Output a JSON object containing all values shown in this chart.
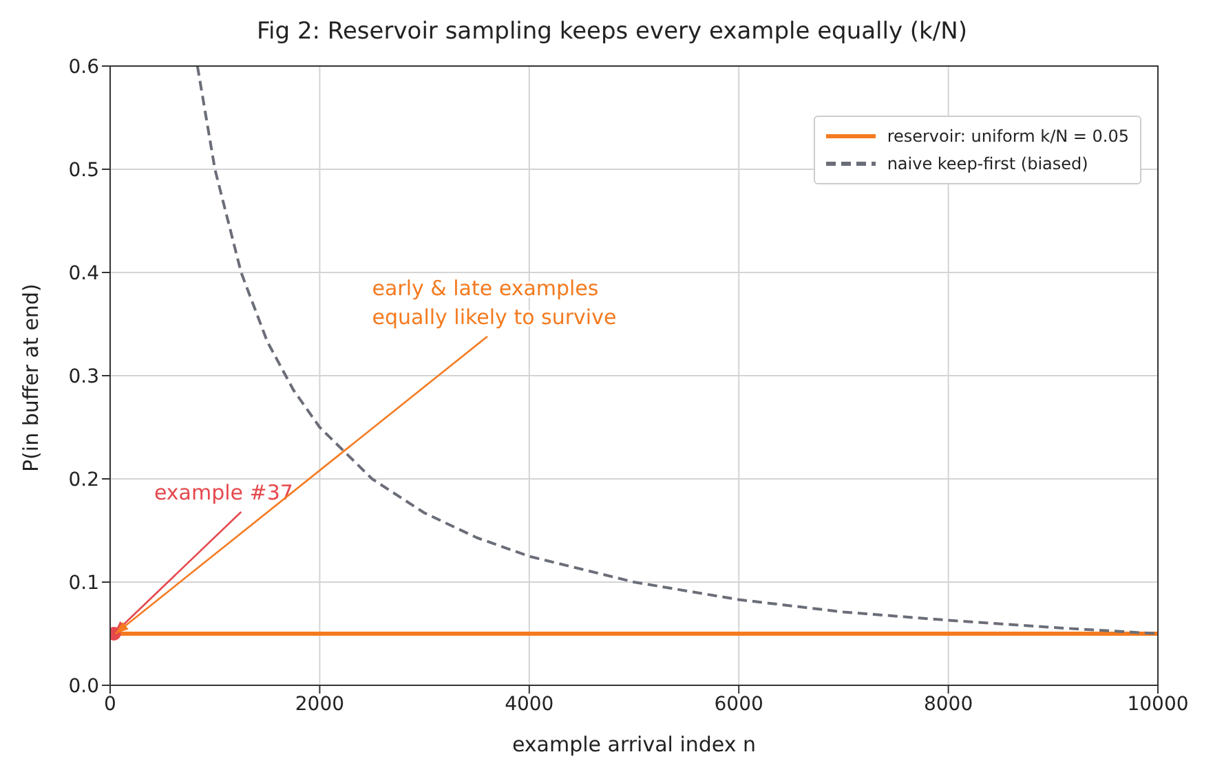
{
  "chart_data": {
    "type": "line",
    "title": "Fig 2: Reservoir sampling keeps every example equally (k/N)",
    "xlabel": "example arrival index n",
    "ylabel": "P(in buffer at end)",
    "xlim": [
      0,
      10000
    ],
    "xticks": [
      0,
      2000,
      4000,
      6000,
      8000,
      10000
    ],
    "ylim": [
      0,
      0.6
    ],
    "yticks": [
      {
        "value": 0,
        "label": "0.0"
      },
      {
        "value": 0.1,
        "label": "0.1"
      },
      {
        "value": 0.2,
        "label": "0.2"
      },
      {
        "value": 0.3,
        "label": "0.3"
      },
      {
        "value": 0.4,
        "label": "0.4"
      },
      {
        "value": 0.5,
        "label": "0.5"
      },
      {
        "value": 0.6,
        "label": "0.6"
      }
    ],
    "grid": true,
    "legend": "top right",
    "series": [
      {
        "name": "reservoir: uniform  k/N = 0.05",
        "color": "#f47a1f",
        "line_style": "solid",
        "x": [
          0,
          10000
        ],
        "values": [
          0.05,
          0.05
        ]
      },
      {
        "name": "naive keep-first (biased)",
        "color": "#6b6e78",
        "line_style": "dashed",
        "x": [
          833,
          1000,
          1250,
          1500,
          1750,
          2000,
          2500,
          3000,
          3500,
          4000,
          5000,
          6000,
          7000,
          8000,
          9000,
          10000
        ],
        "values": [
          0.6,
          0.5,
          0.4,
          0.333,
          0.286,
          0.25,
          0.2,
          0.167,
          0.143,
          0.125,
          0.1,
          0.083,
          0.071,
          0.063,
          0.056,
          0.05
        ]
      },
      {
        "type": "scatter",
        "color": "#e5484d",
        "x": [
          37
        ],
        "values": [
          0.05
        ]
      }
    ],
    "annotations": [
      {
        "text": "example #37",
        "x": 37,
        "y": 0.05
      },
      {
        "text": "early & late examples\nequally likely to survive",
        "x": 50,
        "y": 0.05
      }
    ]
  }
}
